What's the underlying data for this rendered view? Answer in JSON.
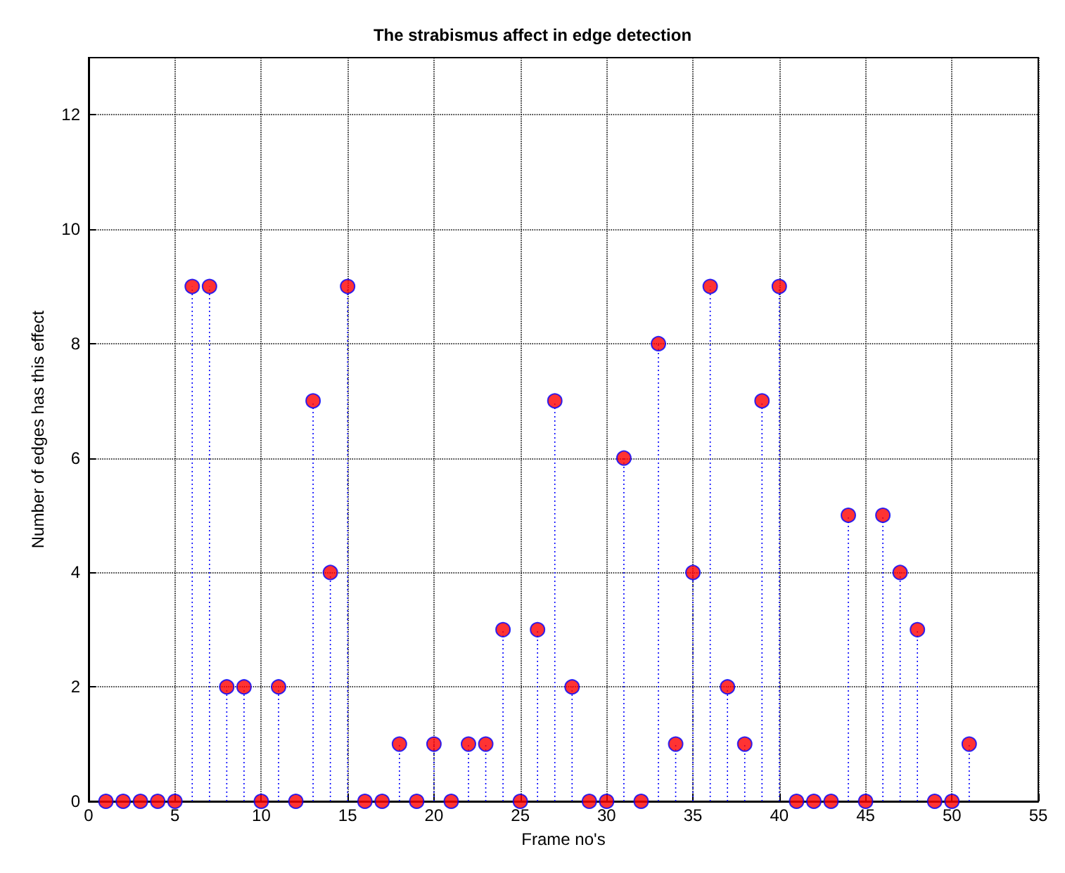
{
  "chart_data": {
    "type": "lollipop",
    "title": "The strabismus affect in edge detection",
    "xlabel": "Frame no's",
    "ylabel": "Number of edges has this effect",
    "x": [
      1,
      2,
      3,
      4,
      5,
      6,
      7,
      8,
      9,
      10,
      11,
      12,
      13,
      14,
      15,
      16,
      17,
      18,
      19,
      20,
      21,
      22,
      23,
      24,
      25,
      26,
      27,
      28,
      29,
      30,
      31,
      32,
      33,
      34,
      35,
      36,
      37,
      38,
      39,
      40,
      41,
      42,
      43,
      44,
      45,
      46,
      47,
      48,
      49,
      50,
      51
    ],
    "values": [
      0,
      0,
      0,
      0,
      0,
      9,
      9,
      2,
      2,
      0,
      2,
      0,
      7,
      4,
      9,
      0,
      0,
      1,
      0,
      1,
      0,
      1,
      1,
      3,
      0,
      3,
      7,
      2,
      0,
      0,
      6,
      0,
      8,
      1,
      4,
      9,
      2,
      1,
      7,
      9,
      0,
      0,
      0,
      5,
      0,
      5,
      4,
      3,
      0,
      0,
      1
    ],
    "color": "#ff0000",
    "xlim": [
      0,
      55
    ],
    "xticks": [
      0,
      5,
      10,
      15,
      20,
      25,
      30,
      35,
      40,
      45,
      50,
      55
    ],
    "ylim": [
      0,
      13
    ],
    "yticks": [
      0,
      2,
      4,
      6,
      8,
      10,
      12
    ],
    "grid": true,
    "marker": "circle",
    "line_style": "dotted"
  }
}
